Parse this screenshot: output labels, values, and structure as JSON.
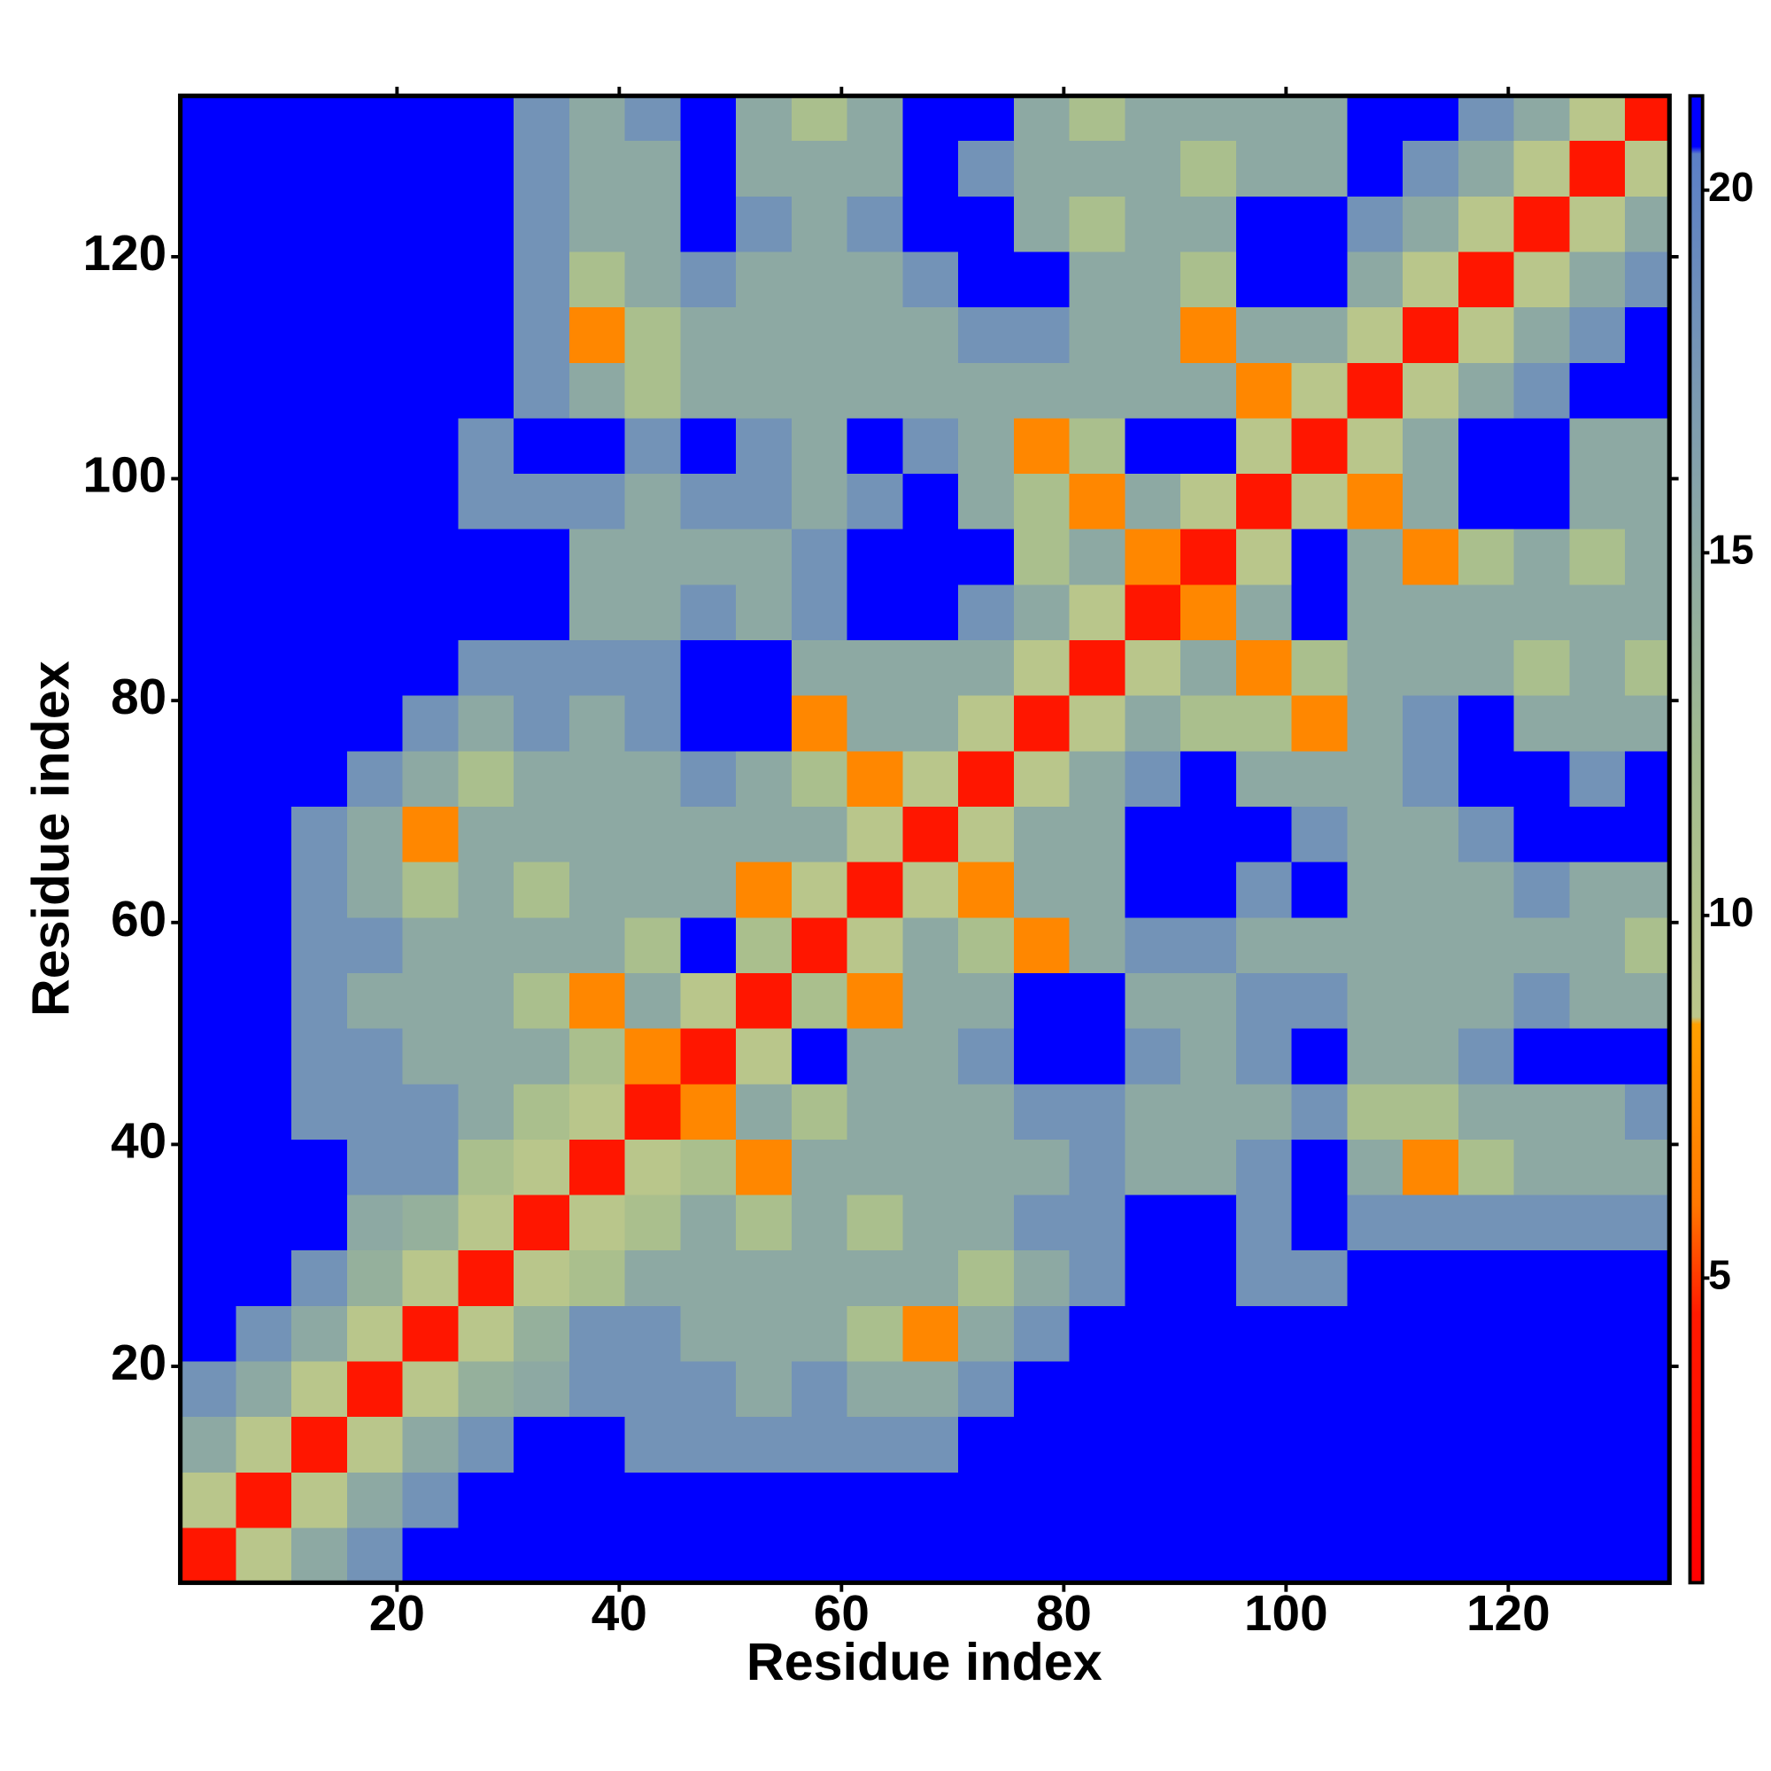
{
  "chart_data": {
    "type": "heatmap",
    "x_label": "Residue index",
    "y_label": "Residue index",
    "xlim": [
      0.5,
      134.5
    ],
    "ylim": [
      0.5,
      134.5
    ],
    "xticks": [
      20,
      40,
      60,
      80,
      100,
      120
    ],
    "yticks": [
      20,
      40,
      60,
      80,
      100,
      120
    ],
    "xbins": [
      0.5,
      5.5,
      10.5,
      15.5,
      20.5,
      25.5,
      30.5,
      35.5,
      40.5,
      45.5,
      50.5,
      55.5,
      60.5,
      65.5,
      70.5,
      75.5,
      80.5,
      85.5,
      90.5,
      95.5,
      100.5,
      105.5,
      110.5,
      115.5,
      120.5,
      125.5,
      130.5,
      134.5
    ],
    "ybins": [
      0.5,
      5.5,
      10.5,
      15.5,
      20.5,
      25.5,
      30.5,
      35.5,
      40.5,
      45.5,
      50.5,
      55.5,
      60.5,
      65.5,
      70.5,
      75.5,
      80.5,
      85.5,
      90.5,
      95.5,
      100.5,
      105.5,
      110.5,
      115.5,
      120.5,
      125.5,
      130.5,
      134.5
    ],
    "zlim": [
      0.8,
      21.3
    ],
    "zticks": [
      5,
      10,
      15,
      20
    ],
    "colorscale": [
      [
        0.8,
        "#ff0000"
      ],
      [
        4.5,
        "#ff1a00"
      ],
      [
        6,
        "#ff7700"
      ],
      [
        8.5,
        "#ffa000"
      ],
      [
        8.6,
        "#bcc78b"
      ],
      [
        12,
        "#a3bc8e"
      ],
      [
        16,
        "#86a3aa"
      ],
      [
        20.5,
        "#5b7fc7"
      ],
      [
        20.6,
        "#0000ff"
      ],
      [
        21.3,
        "#0000ff"
      ]
    ],
    "z": [
      [
        4,
        9,
        15,
        18,
        21,
        21,
        21,
        21,
        21,
        21,
        21,
        21,
        21,
        21,
        21,
        21,
        21,
        21,
        21,
        21,
        21,
        21,
        21,
        21,
        21,
        21,
        21
      ],
      [
        9,
        4,
        9,
        15,
        18,
        21,
        21,
        21,
        21,
        21,
        21,
        21,
        21,
        21,
        21,
        21,
        21,
        21,
        21,
        21,
        21,
        21,
        21,
        21,
        21,
        21,
        21
      ],
      [
        15,
        9,
        4,
        9,
        15,
        18,
        21,
        21,
        18,
        18,
        18,
        18,
        18,
        18,
        21,
        21,
        21,
        21,
        21,
        21,
        21,
        21,
        21,
        21,
        21,
        21,
        21
      ],
      [
        18,
        15,
        9,
        4,
        9,
        14,
        15,
        18,
        18,
        18,
        15,
        18,
        15,
        15,
        18,
        21,
        21,
        21,
        21,
        21,
        21,
        21,
        21,
        21,
        21,
        21,
        21
      ],
      [
        21,
        18,
        15,
        9,
        4,
        9,
        14,
        18,
        18,
        15,
        15,
        15,
        11,
        7,
        15,
        18,
        21,
        21,
        21,
        21,
        21,
        21,
        21,
        21,
        21,
        21,
        21
      ],
      [
        21,
        21,
        18,
        14,
        9,
        4,
        9,
        11,
        15,
        15,
        15,
        15,
        15,
        15,
        11,
        15,
        18,
        21,
        21,
        18,
        18,
        21,
        21,
        21,
        21,
        21,
        21
      ],
      [
        21,
        21,
        21,
        15,
        14,
        9,
        4,
        9,
        11,
        15,
        11,
        15,
        11,
        15,
        15,
        18,
        18,
        21,
        21,
        18,
        21,
        18,
        18,
        18,
        18,
        18,
        18
      ],
      [
        21,
        21,
        21,
        18,
        18,
        11,
        9,
        4,
        9,
        11,
        7,
        15,
        15,
        15,
        15,
        15,
        18,
        15,
        15,
        18,
        21,
        15,
        7,
        11,
        15,
        15,
        15
      ],
      [
        21,
        21,
        18,
        18,
        18,
        15,
        11,
        9,
        4,
        7,
        15,
        11,
        15,
        15,
        15,
        18,
        18,
        15,
        15,
        15,
        18,
        11,
        11,
        15,
        15,
        15,
        18
      ],
      [
        21,
        21,
        18,
        18,
        15,
        15,
        15,
        11,
        7,
        4,
        9,
        21,
        15,
        15,
        18,
        21,
        21,
        18,
        15,
        18,
        21,
        15,
        15,
        18,
        21,
        21,
        21
      ],
      [
        21,
        21,
        18,
        15,
        15,
        15,
        11,
        7,
        15,
        9,
        4,
        11,
        7,
        15,
        15,
        21,
        21,
        15,
        15,
        18,
        18,
        15,
        15,
        15,
        18,
        15,
        15
      ],
      [
        21,
        21,
        18,
        18,
        15,
        15,
        15,
        15,
        11,
        21,
        11,
        4,
        9,
        15,
        11,
        7,
        15,
        18,
        18,
        15,
        15,
        15,
        15,
        15,
        15,
        15,
        11
      ],
      [
        21,
        21,
        18,
        15,
        11,
        15,
        11,
        15,
        15,
        15,
        7,
        9,
        4,
        9,
        7,
        15,
        15,
        21,
        21,
        18,
        21,
        15,
        15,
        15,
        18,
        15,
        15
      ],
      [
        21,
        21,
        18,
        15,
        7,
        15,
        15,
        15,
        15,
        15,
        15,
        15,
        9,
        4,
        9,
        15,
        15,
        21,
        21,
        21,
        18,
        15,
        15,
        18,
        21,
        21,
        21
      ],
      [
        21,
        21,
        21,
        18,
        15,
        11,
        15,
        15,
        15,
        18,
        15,
        11,
        7,
        9,
        4,
        9,
        15,
        18,
        21,
        15,
        15,
        15,
        18,
        21,
        21,
        18,
        21
      ],
      [
        21,
        21,
        21,
        21,
        18,
        15,
        18,
        15,
        18,
        21,
        21,
        7,
        15,
        15,
        9,
        4,
        9,
        15,
        11,
        11,
        7,
        15,
        18,
        21,
        15,
        15,
        15
      ],
      [
        21,
        21,
        21,
        21,
        21,
        18,
        18,
        18,
        18,
        21,
        21,
        15,
        15,
        15,
        15,
        9,
        4,
        9,
        15,
        7,
        11,
        15,
        15,
        15,
        11,
        15,
        11
      ],
      [
        21,
        21,
        21,
        21,
        21,
        21,
        21,
        15,
        15,
        18,
        15,
        18,
        21,
        21,
        18,
        15,
        9,
        4,
        7,
        15,
        21,
        15,
        15,
        15,
        15,
        15,
        15
      ],
      [
        21,
        21,
        21,
        21,
        21,
        21,
        21,
        15,
        15,
        15,
        15,
        18,
        21,
        21,
        21,
        11,
        15,
        7,
        4,
        9,
        21,
        15,
        7,
        11,
        15,
        11,
        15
      ],
      [
        21,
        21,
        21,
        21,
        21,
        18,
        18,
        18,
        15,
        18,
        18,
        15,
        18,
        21,
        15,
        11,
        7,
        15,
        9,
        4,
        9,
        7,
        15,
        21,
        21,
        15,
        15
      ],
      [
        21,
        21,
        21,
        21,
        21,
        18,
        21,
        21,
        18,
        21,
        18,
        15,
        21,
        18,
        15,
        7,
        11,
        21,
        21,
        9,
        4,
        9,
        15,
        21,
        21,
        15,
        15
      ],
      [
        21,
        21,
        21,
        21,
        21,
        21,
        18,
        15,
        11,
        15,
        15,
        15,
        15,
        15,
        15,
        15,
        15,
        15,
        15,
        7,
        9,
        4,
        9,
        15,
        18,
        21,
        21
      ],
      [
        21,
        21,
        21,
        21,
        21,
        21,
        18,
        7,
        11,
        15,
        15,
        15,
        15,
        15,
        18,
        18,
        15,
        15,
        7,
        15,
        15,
        9,
        4,
        9,
        15,
        18,
        21
      ],
      [
        21,
        21,
        21,
        21,
        21,
        21,
        18,
        11,
        15,
        18,
        15,
        15,
        15,
        18,
        21,
        21,
        15,
        15,
        11,
        21,
        21,
        15,
        9,
        4,
        9,
        15,
        18
      ],
      [
        21,
        21,
        21,
        21,
        21,
        21,
        18,
        15,
        15,
        21,
        18,
        15,
        18,
        21,
        21,
        15,
        11,
        15,
        15,
        21,
        21,
        18,
        15,
        9,
        4,
        9,
        15
      ],
      [
        21,
        21,
        21,
        21,
        21,
        21,
        18,
        15,
        15,
        21,
        15,
        15,
        15,
        21,
        18,
        15,
        15,
        15,
        11,
        15,
        15,
        21,
        18,
        15,
        9,
        4,
        9
      ],
      [
        21,
        21,
        21,
        21,
        21,
        21,
        18,
        15,
        18,
        21,
        15,
        11,
        15,
        21,
        21,
        15,
        11,
        15,
        15,
        15,
        15,
        21,
        21,
        18,
        15,
        9,
        4
      ]
    ]
  }
}
